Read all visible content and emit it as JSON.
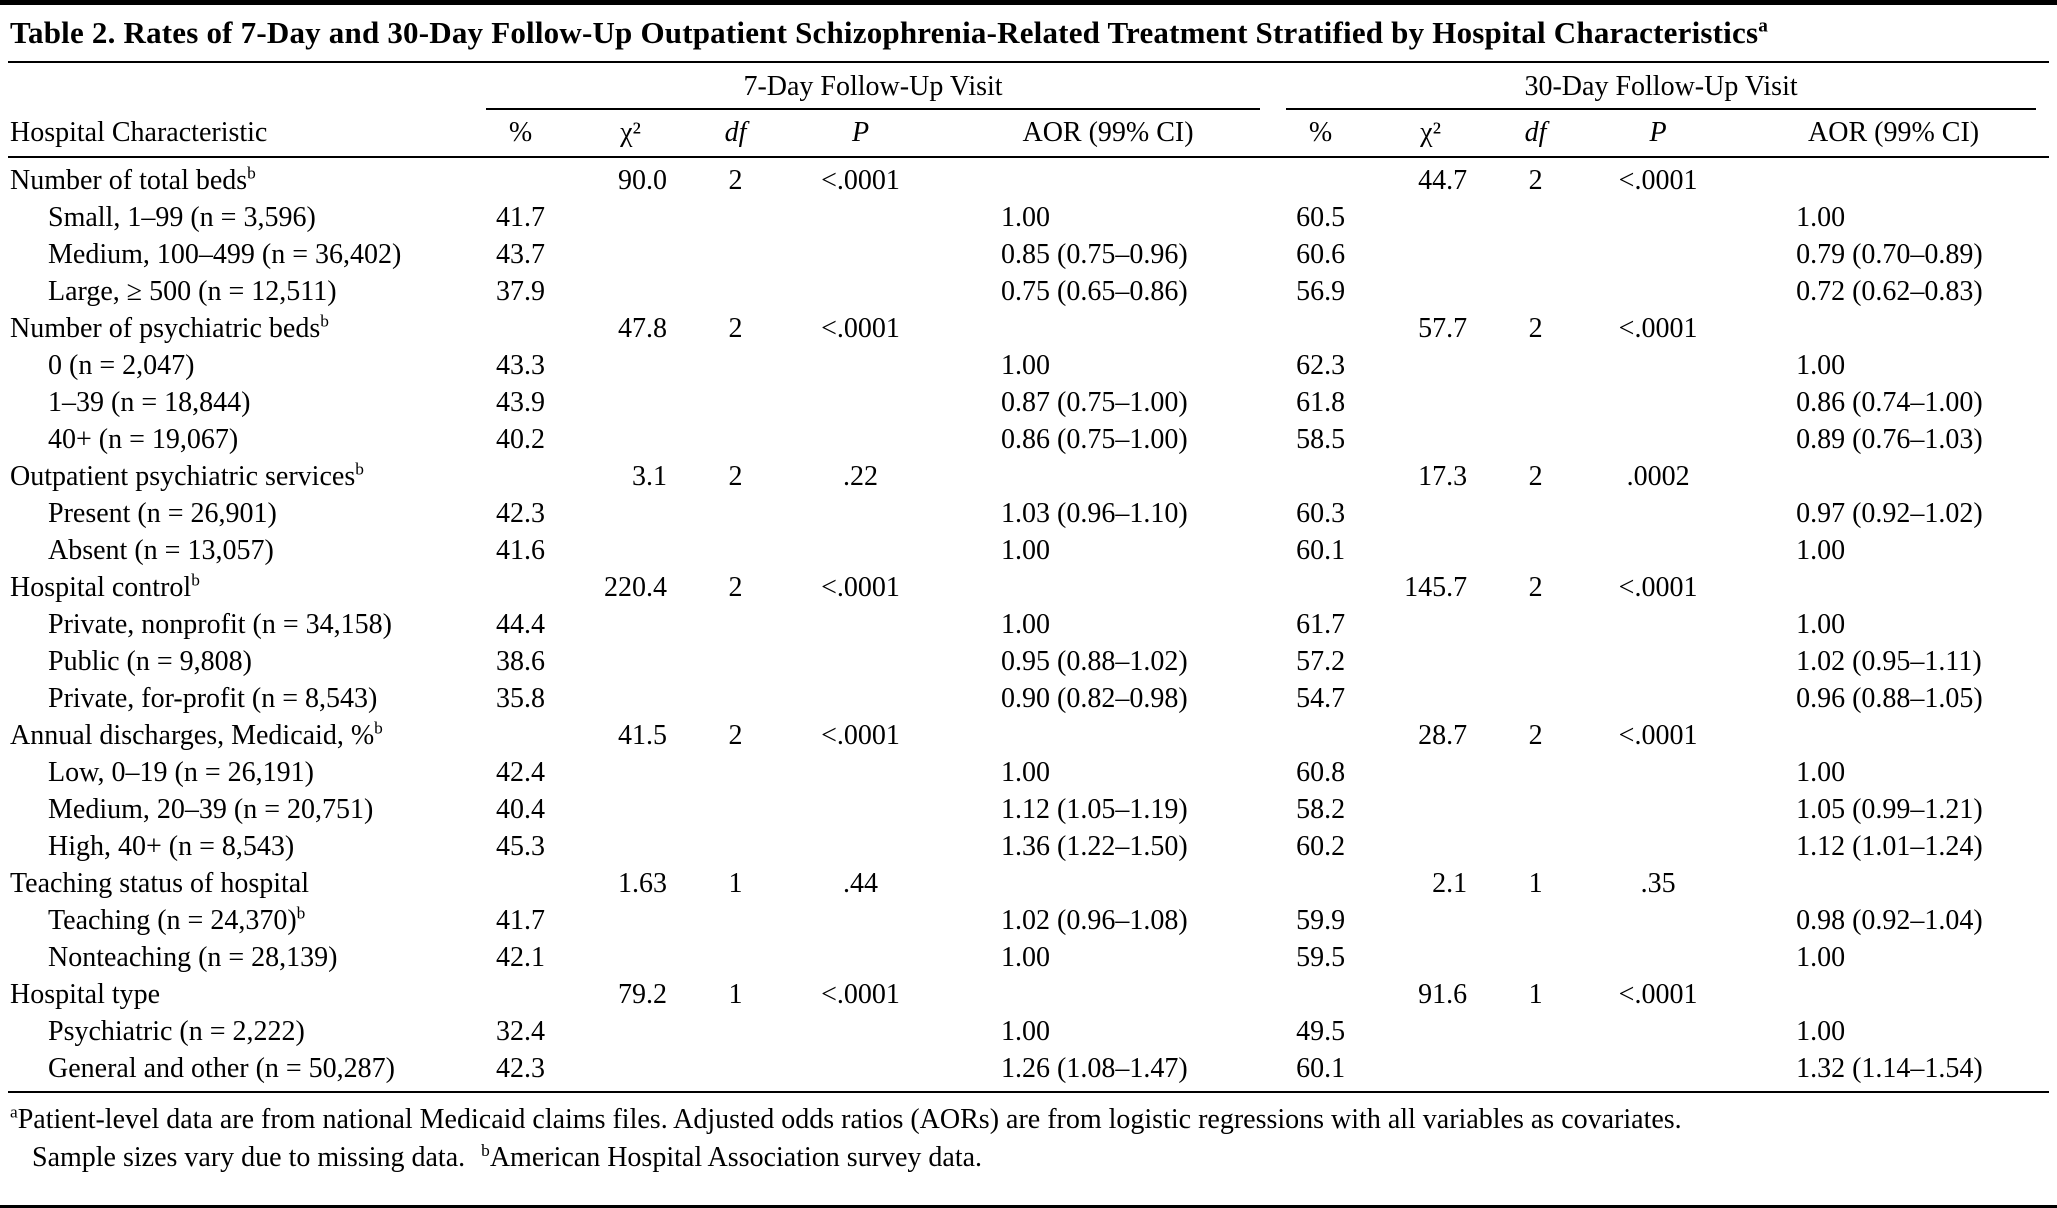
{
  "title": {
    "text": "Table 2. Rates of 7-Day and 30-Day Follow-Up Outpatient Schizophrenia-Related Treatment Stratified by Hospital Characteristics",
    "sup": "a"
  },
  "table": {
    "groups": [
      {
        "label": "7-Day Follow-Up Visit"
      },
      {
        "label": "30-Day Follow-Up Visit"
      }
    ],
    "columns": {
      "characteristic": "Hospital Characteristic",
      "pct": "%",
      "chi2": "χ²",
      "df": "df",
      "p": "P",
      "aor": "AOR (99% CI)"
    },
    "rows": [
      {
        "label": "Number of total beds",
        "sup": "b",
        "indent": false,
        "d7": [
          "",
          "90.0",
          "2",
          "<.0001",
          ""
        ],
        "d30": [
          "",
          "44.7",
          "2",
          "<.0001",
          ""
        ]
      },
      {
        "label": "Small, 1–99 (n = 3,596)",
        "indent": true,
        "d7": [
          "41.7",
          "",
          "",
          "",
          "1.00"
        ],
        "d30": [
          "60.5",
          "",
          "",
          "",
          "1.00"
        ]
      },
      {
        "label": "Medium, 100–499 (n = 36,402)",
        "indent": true,
        "d7": [
          "43.7",
          "",
          "",
          "",
          "0.85 (0.75–0.96)"
        ],
        "d30": [
          "60.6",
          "",
          "",
          "",
          "0.79 (0.70–0.89)"
        ]
      },
      {
        "label": "Large, ≥ 500 (n = 12,511)",
        "indent": true,
        "d7": [
          "37.9",
          "",
          "",
          "",
          "0.75 (0.65–0.86)"
        ],
        "d30": [
          "56.9",
          "",
          "",
          "",
          "0.72 (0.62–0.83)"
        ]
      },
      {
        "label": "Number of psychiatric beds",
        "sup": "b",
        "indent": false,
        "d7": [
          "",
          "47.8",
          "2",
          "<.0001",
          ""
        ],
        "d30": [
          "",
          "57.7",
          "2",
          "<.0001",
          ""
        ]
      },
      {
        "label": "0 (n = 2,047)",
        "indent": true,
        "d7": [
          "43.3",
          "",
          "",
          "",
          "1.00"
        ],
        "d30": [
          "62.3",
          "",
          "",
          "",
          "1.00"
        ]
      },
      {
        "label": "1–39 (n = 18,844)",
        "indent": true,
        "d7": [
          "43.9",
          "",
          "",
          "",
          "0.87 (0.75–1.00)"
        ],
        "d30": [
          "61.8",
          "",
          "",
          "",
          "0.86 (0.74–1.00)"
        ]
      },
      {
        "label": "40+ (n = 19,067)",
        "indent": true,
        "d7": [
          "40.2",
          "",
          "",
          "",
          "0.86 (0.75–1.00)"
        ],
        "d30": [
          "58.5",
          "",
          "",
          "",
          "0.89 (0.76–1.03)"
        ]
      },
      {
        "label": "Outpatient psychiatric services",
        "sup": "b",
        "indent": false,
        "d7": [
          "",
          "3.1",
          "2",
          ".22",
          ""
        ],
        "d30": [
          "",
          "17.3",
          "2",
          ".0002",
          ""
        ]
      },
      {
        "label": "Present (n = 26,901)",
        "indent": true,
        "d7": [
          "42.3",
          "",
          "",
          "",
          "1.03 (0.96–1.10)"
        ],
        "d30": [
          "60.3",
          "",
          "",
          "",
          "0.97 (0.92–1.02)"
        ]
      },
      {
        "label": "Absent (n = 13,057)",
        "indent": true,
        "d7": [
          "41.6",
          "",
          "",
          "",
          "1.00"
        ],
        "d30": [
          "60.1",
          "",
          "",
          "",
          "1.00"
        ]
      },
      {
        "label": "Hospital control",
        "sup": "b",
        "indent": false,
        "d7": [
          "",
          "220.4",
          "2",
          "<.0001",
          ""
        ],
        "d30": [
          "",
          "145.7",
          "2",
          "<.0001",
          ""
        ]
      },
      {
        "label": "Private, nonprofit (n = 34,158)",
        "indent": true,
        "d7": [
          "44.4",
          "",
          "",
          "",
          "1.00"
        ],
        "d30": [
          "61.7",
          "",
          "",
          "",
          "1.00"
        ]
      },
      {
        "label": "Public (n = 9,808)",
        "indent": true,
        "d7": [
          "38.6",
          "",
          "",
          "",
          "0.95 (0.88–1.02)"
        ],
        "d30": [
          "57.2",
          "",
          "",
          "",
          "1.02 (0.95–1.11)"
        ]
      },
      {
        "label": "Private, for-profit (n = 8,543)",
        "indent": true,
        "d7": [
          "35.8",
          "",
          "",
          "",
          "0.90 (0.82–0.98)"
        ],
        "d30": [
          "54.7",
          "",
          "",
          "",
          "0.96 (0.88–1.05)"
        ]
      },
      {
        "label": "Annual discharges, Medicaid, %",
        "sup": "b",
        "indent": false,
        "d7": [
          "",
          "41.5",
          "2",
          "<.0001",
          ""
        ],
        "d30": [
          "",
          "28.7",
          "2",
          "<.0001",
          ""
        ]
      },
      {
        "label": "Low, 0–19 (n = 26,191)",
        "indent": true,
        "d7": [
          "42.4",
          "",
          "",
          "",
          "1.00"
        ],
        "d30": [
          "60.8",
          "",
          "",
          "",
          "1.00"
        ]
      },
      {
        "label": "Medium, 20–39 (n = 20,751)",
        "indent": true,
        "d7": [
          "40.4",
          "",
          "",
          "",
          "1.12 (1.05–1.19)"
        ],
        "d30": [
          "58.2",
          "",
          "",
          "",
          "1.05 (0.99–1.21)"
        ]
      },
      {
        "label": "High, 40+ (n = 8,543)",
        "indent": true,
        "d7": [
          "45.3",
          "",
          "",
          "",
          "1.36 (1.22–1.50)"
        ],
        "d30": [
          "60.2",
          "",
          "",
          "",
          "1.12 (1.01–1.24)"
        ]
      },
      {
        "label": "Teaching status of hospital",
        "indent": false,
        "d7": [
          "",
          "1.63",
          "1",
          ".44",
          ""
        ],
        "d30": [
          "",
          "2.1",
          "1",
          ".35",
          ""
        ]
      },
      {
        "label": "Teaching (n = 24,370)",
        "sup": "b",
        "indent": true,
        "d7": [
          "41.7",
          "",
          "",
          "",
          "1.02 (0.96–1.08)"
        ],
        "d30": [
          "59.9",
          "",
          "",
          "",
          "0.98 (0.92–1.04)"
        ]
      },
      {
        "label": "Nonteaching (n = 28,139)",
        "indent": true,
        "d7": [
          "42.1",
          "",
          "",
          "",
          "1.00"
        ],
        "d30": [
          "59.5",
          "",
          "",
          "",
          "1.00"
        ]
      },
      {
        "label": "Hospital type",
        "indent": false,
        "d7": [
          "",
          "79.2",
          "1",
          "<.0001",
          ""
        ],
        "d30": [
          "",
          "91.6",
          "1",
          "<.0001",
          ""
        ]
      },
      {
        "label": "Psychiatric (n = 2,222)",
        "indent": true,
        "d7": [
          "32.4",
          "",
          "",
          "",
          "1.00"
        ],
        "d30": [
          "49.5",
          "",
          "",
          "",
          "1.00"
        ]
      },
      {
        "label": "General and other (n = 50,287)",
        "indent": true,
        "d7": [
          "42.3",
          "",
          "",
          "",
          "1.26 (1.08–1.47)"
        ],
        "d30": [
          "60.1",
          "",
          "",
          "",
          "1.32 (1.14–1.54)"
        ]
      }
    ]
  },
  "footnotes": {
    "line1_sup": "a",
    "line1_text": "Patient-level data are from national Medicaid claims files. Adjusted odds ratios (AORs) are from logistic regressions with all variables as covariates.",
    "line2_text1": "Sample sizes vary due to missing data.",
    "line2_sup": "b",
    "line2_text2": "American Hospital Association survey data."
  }
}
